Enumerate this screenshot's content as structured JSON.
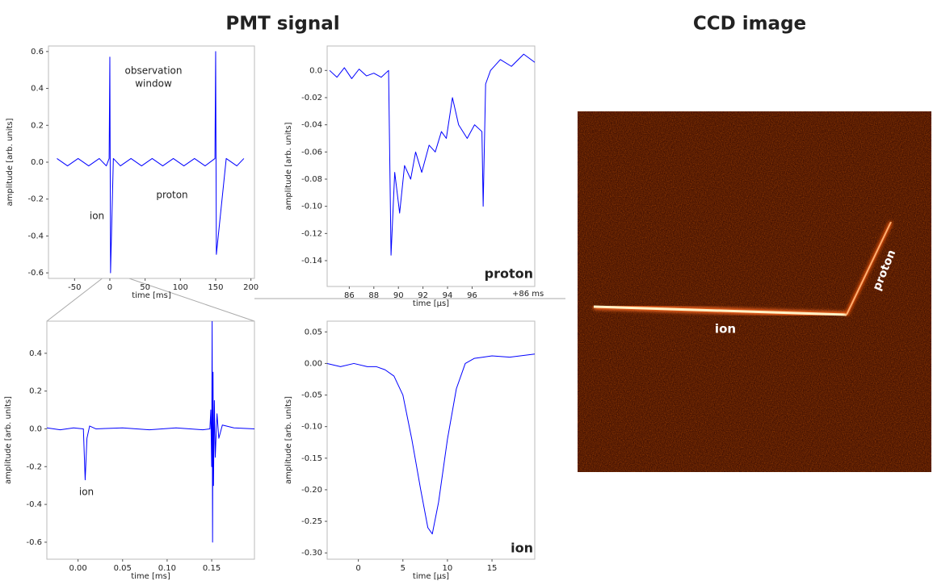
{
  "figure": {
    "left_title": "PMT signal",
    "right_title": "CCD image",
    "ccd_labels": [
      "ion",
      "proton"
    ]
  },
  "chart_data": [
    {
      "type": "line",
      "xlabel": "time [ms]",
      "ylabel": "amplitude [arb. units]",
      "color": "#0000ff",
      "x": [
        -75,
        -60,
        -45,
        -30,
        -15,
        -5,
        -1,
        0,
        1,
        5,
        15,
        30,
        45,
        60,
        75,
        90,
        105,
        120,
        135,
        149,
        150,
        151,
        165,
        180,
        190
      ],
      "values": [
        0.02,
        -0.02,
        0.02,
        -0.02,
        0.02,
        -0.02,
        0.02,
        0.57,
        -0.6,
        0.02,
        -0.02,
        0.02,
        -0.02,
        0.02,
        -0.02,
        0.02,
        -0.02,
        0.02,
        -0.02,
        0.02,
        0.6,
        -0.5,
        0.02,
        -0.02,
        0.02
      ],
      "xlim": [
        -87,
        205
      ],
      "ylim": [
        -0.63,
        0.63
      ],
      "xticks": [
        -50,
        0,
        50,
        100,
        150,
        200
      ],
      "yticks": [
        0.6,
        0.4,
        0.2,
        {
          "value": 0,
          "label": "0.0"
        },
        -0.2,
        -0.4,
        -0.6
      ],
      "annotations": [
        "observation",
        "window",
        "proton",
        "ion"
      ]
    },
    {
      "type": "line",
      "xlabel": "time [µs]",
      "ylabel": "amplitude [arb. units]",
      "color": "#0000ff",
      "x_offset_label": "+86 ms",
      "x": [
        84.4,
        85,
        85.6,
        86.2,
        86.8,
        87.4,
        88,
        88.6,
        89.2,
        89.4,
        89.7,
        90.1,
        90.5,
        91.0,
        91.4,
        91.9,
        92.5,
        93.0,
        93.5,
        93.9,
        94.4,
        94.9,
        95.6,
        96.2,
        96.8,
        96.9,
        97.1,
        97.5,
        98.3,
        99.2,
        100.2,
        101.1
      ],
      "values": [
        0.0,
        -0.005,
        0.002,
        -0.006,
        0.001,
        -0.004,
        -0.002,
        -0.005,
        0.0,
        -0.136,
        -0.075,
        -0.105,
        -0.07,
        -0.08,
        -0.06,
        -0.075,
        -0.055,
        -0.06,
        -0.045,
        -0.05,
        -0.02,
        -0.04,
        -0.05,
        -0.04,
        -0.045,
        -0.1,
        -0.01,
        0.0,
        0.008,
        0.003,
        0.012,
        0.006
      ],
      "xlim": [
        84.2,
        101.1
      ],
      "ylim": [
        -0.159,
        0.018
      ],
      "xticks": [
        86,
        88,
        90,
        92,
        94,
        96
      ],
      "yticks": [
        {
          "value": 0,
          "label": "0.0"
        },
        -0.02,
        -0.04,
        -0.06,
        -0.08,
        {
          "value": -0.1,
          "label": "-0.10"
        },
        -0.12,
        -0.14
      ],
      "annotations": [
        "proton"
      ]
    },
    {
      "type": "line",
      "xlabel": "time [ms]",
      "ylabel": "amplitude [arb. units]",
      "color": "#0000ff",
      "x": [
        -0.035,
        -0.02,
        -0.005,
        0.006,
        0.008,
        0.01,
        0.013,
        0.02,
        0.05,
        0.08,
        0.11,
        0.14,
        0.148,
        0.149,
        0.15,
        0.1505,
        0.151,
        0.1515,
        0.152,
        0.153,
        0.154,
        0.156,
        0.158,
        0.162,
        0.175,
        0.198
      ],
      "values": [
        0.005,
        -0.005,
        0.005,
        0.0,
        -0.27,
        -0.05,
        0.015,
        0.0,
        0.005,
        -0.005,
        0.005,
        -0.005,
        0.0,
        0.1,
        -0.2,
        0.57,
        -0.6,
        0.3,
        -0.3,
        0.15,
        -0.15,
        0.08,
        -0.05,
        0.02,
        0.005,
        0.0
      ],
      "xlim": [
        -0.035,
        0.198
      ],
      "ylim": [
        -0.69,
        0.57
      ],
      "xticks": [
        {
          "value": 0,
          "label": "0.00"
        },
        0.05,
        {
          "value": 0.1,
          "label": "0.10"
        },
        0.15
      ],
      "yticks": [
        0.4,
        0.2,
        {
          "value": 0,
          "label": "0.0"
        },
        -0.2,
        -0.4,
        -0.6
      ],
      "annotations": [
        "ion"
      ]
    },
    {
      "type": "line",
      "xlabel": "time [µs]",
      "ylabel": "amplitude [arb. units]",
      "color": "#0000ff",
      "x": [
        -3.5,
        -2,
        -0.5,
        1,
        2,
        3,
        4,
        5,
        6,
        7,
        7.8,
        8.3,
        9,
        10,
        11,
        12,
        13,
        14,
        15,
        17,
        19.8
      ],
      "values": [
        0.0,
        -0.005,
        0.0,
        -0.005,
        -0.005,
        -0.01,
        -0.02,
        -0.05,
        -0.12,
        -0.2,
        -0.26,
        -0.27,
        -0.22,
        -0.12,
        -0.04,
        0.0,
        0.008,
        0.01,
        0.012,
        0.01,
        0.015
      ],
      "xlim": [
        -3.5,
        19.8
      ],
      "ylim": [
        -0.31,
        0.067
      ],
      "xticks": [
        0,
        5,
        10,
        15
      ],
      "yticks": [
        0.05,
        {
          "value": 0,
          "label": "0.00"
        },
        -0.05,
        {
          "value": -0.1,
          "label": "-0.10"
        },
        -0.15,
        {
          "value": -0.2,
          "label": "-0.20"
        },
        -0.25,
        {
          "value": -0.3,
          "label": "-0.30"
        }
      ],
      "annotations": [
        "ion"
      ]
    }
  ]
}
